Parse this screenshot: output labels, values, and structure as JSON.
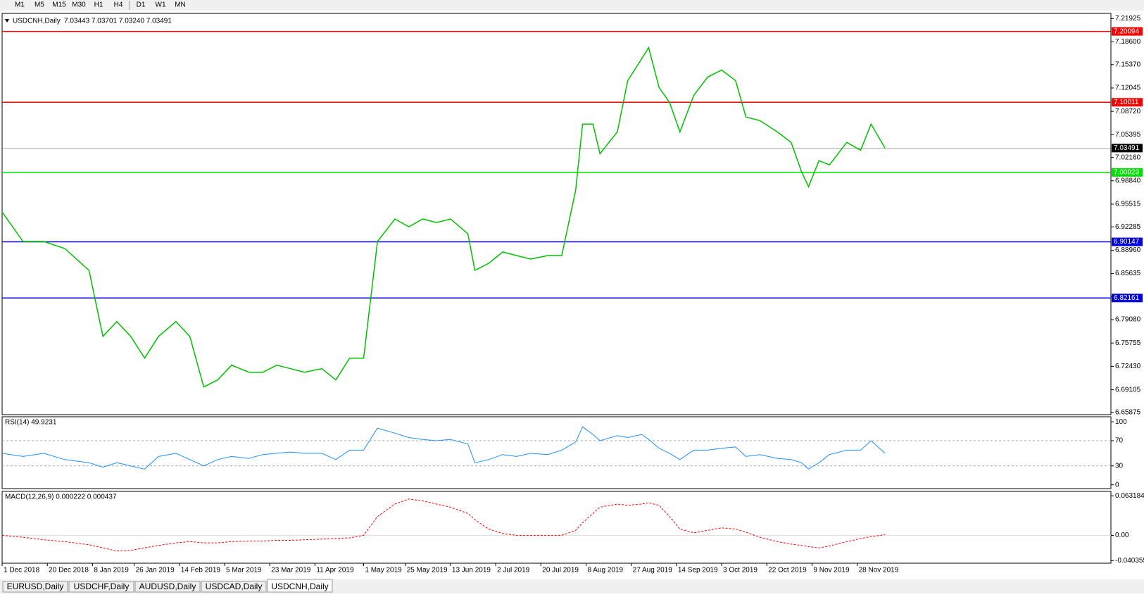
{
  "toolbar": {
    "timeframes": [
      "M1",
      "M5",
      "M15",
      "M30",
      "H1",
      "H4",
      "D1",
      "W1",
      "MN"
    ]
  },
  "chart_data": [
    {
      "type": "line",
      "title": "USDCNH,Daily",
      "subtitle": "7.03443 7.03701 7.03240 7.03491",
      "x": [
        0,
        6,
        12,
        18,
        25,
        29,
        33,
        37,
        41,
        45,
        50,
        54,
        58,
        62,
        66,
        71,
        75,
        79,
        83,
        87,
        92,
        96,
        100,
        104,
        108,
        113,
        117,
        121,
        125,
        129,
        134,
        136,
        140,
        144,
        148,
        152,
        157,
        161,
        165,
        167,
        170,
        172,
        177,
        180,
        184,
        186,
        189,
        192,
        195,
        199,
        203,
        207,
        211,
        214,
        218,
        223,
        227,
        230,
        232,
        235,
        238,
        243,
        247,
        250,
        254
      ],
      "series": [
        {
          "name": "USDCNH",
          "color": "#00c000",
          "values": [
            6.944,
            6.902,
            6.902,
            6.892,
            6.861,
            6.767,
            6.788,
            6.767,
            6.736,
            6.767,
            6.788,
            6.767,
            6.695,
            6.705,
            6.726,
            6.716,
            6.716,
            6.726,
            6.721,
            6.716,
            6.721,
            6.705,
            6.736,
            6.736,
            6.902,
            6.934,
            6.923,
            6.934,
            6.929,
            6.934,
            6.913,
            6.861,
            6.871,
            6.887,
            6.882,
            6.877,
            6.882,
            6.882,
            6.975,
            7.069,
            7.069,
            7.027,
            7.058,
            7.131,
            7.162,
            7.178,
            7.121,
            7.1,
            7.058,
            7.11,
            7.136,
            7.146,
            7.131,
            7.079,
            7.074,
            7.058,
            7.043,
            7.001,
            6.98,
            7.017,
            7.011,
            7.043,
            7.032,
            7.069,
            7.035
          ]
        }
      ],
      "xlim": [
        0,
        319
      ],
      "xticks": [
        {
          "value": 0,
          "label": "1 Dec 2018"
        },
        {
          "value": 13,
          "label": "20 Dec 2018"
        },
        {
          "value": 26,
          "label": "8 Jan 2019"
        },
        {
          "value": 38,
          "label": "26 Jan 2019"
        },
        {
          "value": 51,
          "label": "14 Feb 2019"
        },
        {
          "value": 64,
          "label": "5 Mar 2019"
        },
        {
          "value": 77,
          "label": "23 Mar 2019"
        },
        {
          "value": 90,
          "label": "11 Apr 2019"
        },
        {
          "value": 104,
          "label": "1 May 2019"
        },
        {
          "value": 116,
          "label": "25 May 2019"
        },
        {
          "value": 129,
          "label": "13 Jun 2019"
        },
        {
          "value": 142,
          "label": "2 Jul 2019"
        },
        {
          "value": 155,
          "label": "20 Jul 2019"
        },
        {
          "value": 168,
          "label": "8 Aug 2019"
        },
        {
          "value": 181,
          "label": "27 Aug 2019"
        },
        {
          "value": 194,
          "label": "14 Sep 2019"
        },
        {
          "value": 207,
          "label": "3 Oct 2019"
        },
        {
          "value": 220,
          "label": "22 Oct 2019"
        },
        {
          "value": 233,
          "label": "9 Nov 2019"
        },
        {
          "value": 246,
          "label": "28 Nov 2019"
        }
      ],
      "ylim": [
        6.6556,
        7.2266
      ],
      "yticks": [
        {
          "value": 7.21925,
          "label": "7.21925"
        },
        {
          "value": 7.186,
          "label": "7.18600"
        },
        {
          "value": 7.1537,
          "label": "7.15370"
        },
        {
          "value": 7.12045,
          "label": "7.12045"
        },
        {
          "value": 7.0872,
          "label": "7.08720"
        },
        {
          "value": 7.05395,
          "label": "7.05395"
        },
        {
          "value": 7.0216,
          "label": "7.02160"
        },
        {
          "value": 6.9884,
          "label": "6.98840"
        },
        {
          "value": 6.95515,
          "label": "6.95515"
        },
        {
          "value": 6.92285,
          "label": "6.92285"
        },
        {
          "value": 6.8896,
          "label": "6.88960"
        },
        {
          "value": 6.85635,
          "label": "6.85635"
        },
        {
          "value": 6.8231,
          "label": "6.82310"
        },
        {
          "value": 6.7908,
          "label": "6.79080"
        },
        {
          "value": 6.75755,
          "label": "6.75755"
        },
        {
          "value": 6.7243,
          "label": "6.72430"
        },
        {
          "value": 6.69105,
          "label": "6.69105"
        },
        {
          "value": 6.65875,
          "label": "6.65875"
        }
      ],
      "levels": [
        {
          "value": 7.20094,
          "label": "7.20094",
          "color": "#ff0000"
        },
        {
          "value": 7.10011,
          "label": "7.10011",
          "color": "#ff0000"
        },
        {
          "value": 7.00029,
          "label": "7.00029",
          "color": "#00e000"
        },
        {
          "value": 6.90147,
          "label": "6.90147",
          "color": "#0000dd"
        },
        {
          "value": 6.82161,
          "label": "6.82161",
          "color": "#0000dd"
        }
      ],
      "current": {
        "value": 7.03491,
        "label": "7.03491",
        "color": "#000000"
      }
    },
    {
      "type": "line",
      "title": "RSI(14) 49.9231",
      "x": [
        0,
        6,
        12,
        18,
        25,
        29,
        33,
        37,
        41,
        45,
        50,
        54,
        58,
        62,
        66,
        71,
        75,
        79,
        83,
        87,
        92,
        96,
        100,
        104,
        108,
        113,
        117,
        121,
        125,
        129,
        134,
        136,
        140,
        144,
        148,
        152,
        157,
        161,
        165,
        167,
        170,
        172,
        177,
        180,
        184,
        186,
        189,
        192,
        195,
        199,
        203,
        207,
        211,
        214,
        218,
        223,
        227,
        230,
        232,
        235,
        238,
        243,
        247,
        250,
        254
      ],
      "series": [
        {
          "name": "RSI(14)",
          "color": "#1e90ff",
          "values": [
            50,
            45,
            50,
            40,
            35,
            28,
            35,
            30,
            25,
            45,
            50,
            40,
            30,
            40,
            45,
            42,
            48,
            50,
            52,
            50,
            50,
            40,
            55,
            55,
            90,
            82,
            75,
            72,
            70,
            72,
            65,
            35,
            40,
            48,
            45,
            50,
            48,
            55,
            68,
            92,
            80,
            70,
            78,
            75,
            80,
            72,
            58,
            50,
            40,
            55,
            55,
            58,
            60,
            45,
            48,
            42,
            40,
            35,
            25,
            35,
            48,
            55,
            55,
            70,
            50
          ]
        }
      ],
      "xlim": [
        0,
        319
      ],
      "ylim": [
        -6,
        108
      ],
      "yticks": [
        100,
        70,
        30,
        0
      ],
      "levels": [
        70,
        30
      ]
    },
    {
      "type": "line",
      "title": "MACD(12,26,9) 0.000222 0.000437",
      "x": [
        0,
        6,
        12,
        18,
        25,
        29,
        33,
        37,
        41,
        45,
        50,
        54,
        58,
        62,
        66,
        71,
        75,
        79,
        83,
        87,
        92,
        96,
        100,
        104,
        108,
        113,
        117,
        121,
        125,
        129,
        134,
        136,
        140,
        144,
        148,
        152,
        157,
        161,
        165,
        167,
        170,
        172,
        177,
        180,
        184,
        186,
        189,
        192,
        195,
        199,
        203,
        207,
        211,
        214,
        218,
        223,
        227,
        230,
        232,
        235,
        238,
        243,
        247,
        250,
        254
      ],
      "series": [
        {
          "name": "Signal",
          "color": "#ff0000",
          "values": [
            0,
            -0.003,
            -0.007,
            -0.01,
            -0.015,
            -0.02,
            -0.025,
            -0.024,
            -0.02,
            -0.016,
            -0.012,
            -0.01,
            -0.012,
            -0.012,
            -0.01,
            -0.009,
            -0.009,
            -0.008,
            -0.008,
            -0.007,
            -0.006,
            -0.005,
            -0.004,
            0,
            0.03,
            0.05,
            0.058,
            0.055,
            0.05,
            0.045,
            0.035,
            0.025,
            0.01,
            0.003,
            0,
            0,
            0,
            0,
            0.008,
            0.02,
            0.035,
            0.045,
            0.05,
            0.048,
            0.05,
            0.052,
            0.048,
            0.03,
            0.01,
            0.004,
            0.008,
            0.012,
            0.01,
            0.005,
            -0.003,
            -0.01,
            -0.014,
            -0.016,
            -0.018,
            -0.02,
            -0.017,
            -0.01,
            -0.005,
            -0.002,
            0.001
          ]
        }
      ],
      "xlim": [
        0,
        319
      ],
      "ylim": [
        -0.0445,
        0.0702
      ],
      "yticks": [
        0.063184,
        {
          "value": 0,
          "label": "0.00"
        },
        -0.040355
      ]
    }
  ],
  "tabs": [
    "EURUSD,Daily",
    "USDCHF,Daily",
    "AUDUSD,Daily",
    "USDCAD,Daily",
    "USDCNH,Daily"
  ]
}
